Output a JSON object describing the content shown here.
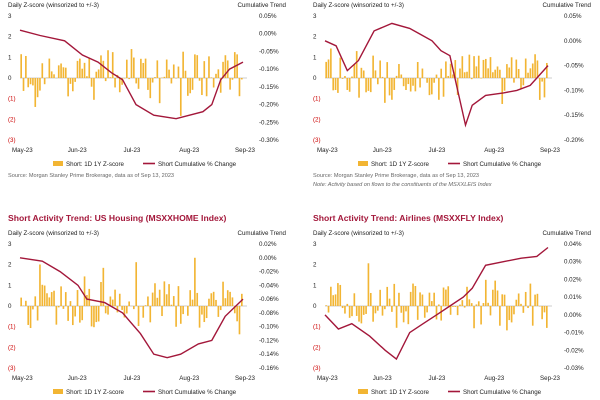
{
  "chart_data": [
    {
      "type": "bar+line",
      "title": "",
      "left_axis_label": "Daily Z-score (winsorized to +/-3)",
      "right_axis_label": "Cumulative Trend",
      "left_ticks": [
        "3",
        "2",
        "1",
        "0",
        "(1)",
        "(2)",
        "(3)"
      ],
      "left_range": [
        -3,
        3
      ],
      "right_ticks": [
        "0.05%",
        "0.00%",
        "-0.05%",
        "-0.10%",
        "-0.15%",
        "-0.20%",
        "-0.25%",
        "-0.30%"
      ],
      "right_range": [
        -0.3,
        0.05
      ],
      "x_tick_labels": [
        "May-23",
        "Jun-23",
        "Jul-23",
        "Aug-23",
        "Sep-23"
      ],
      "legend": [
        "Short: 1D 1Y Z-score",
        "Short Cumulative % Change"
      ],
      "colors": {
        "bar": "#f2b533",
        "line": "#a3173a"
      },
      "source": "Source: Morgan Stanley Prime Brokerage, data as of Sep 13, 2023",
      "note": "",
      "line_keypoints": [
        [
          0,
          0.01
        ],
        [
          0.09,
          -0.005
        ],
        [
          0.2,
          -0.02
        ],
        [
          0.28,
          -0.06
        ],
        [
          0.35,
          -0.08
        ],
        [
          0.41,
          -0.11
        ],
        [
          0.46,
          -0.13
        ],
        [
          0.52,
          -0.2
        ],
        [
          0.6,
          -0.23
        ],
        [
          0.7,
          -0.24
        ],
        [
          0.82,
          -0.22
        ],
        [
          0.86,
          -0.2
        ],
        [
          0.9,
          -0.13
        ],
        [
          0.94,
          -0.1
        ],
        [
          1.0,
          -0.08
        ]
      ]
    },
    {
      "type": "bar+line",
      "title": "",
      "left_axis_label": "Daily Z-score (winsorized to +/-3)",
      "right_axis_label": "Cumulative Trend",
      "left_ticks": [
        "3",
        "2",
        "1",
        "0",
        "(1)",
        "(2)",
        "(3)"
      ],
      "left_range": [
        -3,
        3
      ],
      "right_ticks": [
        "0.05%",
        "0.00%",
        "-0.05%",
        "-0.10%",
        "-0.15%",
        "-0.20%"
      ],
      "right_range": [
        -0.2,
        0.05
      ],
      "x_tick_labels": [
        "May-23",
        "Jun-23",
        "Jul-23",
        "Aug-23",
        "Sep-23"
      ],
      "legend": [
        "Short: 1D 1Y Z-score",
        "Short Cumulative % Change"
      ],
      "colors": {
        "bar": "#f2b533",
        "line": "#a3173a"
      },
      "source": "Source: Morgan Stanley Prime Brokerage, data as of Sep 13, 2023",
      "note": "Note: Activity based on flows to the constituents of the MSXXLEIS Index",
      "line_keypoints": [
        [
          0,
          0.0
        ],
        [
          0.05,
          -0.01
        ],
        [
          0.1,
          -0.06
        ],
        [
          0.15,
          -0.04
        ],
        [
          0.22,
          0.02
        ],
        [
          0.3,
          0.035
        ],
        [
          0.38,
          0.025
        ],
        [
          0.42,
          0.015
        ],
        [
          0.48,
          0.0
        ],
        [
          0.52,
          -0.02
        ],
        [
          0.56,
          -0.03
        ],
        [
          0.6,
          -0.11
        ],
        [
          0.63,
          -0.17
        ],
        [
          0.66,
          -0.13
        ],
        [
          0.72,
          -0.11
        ],
        [
          0.8,
          -0.105
        ],
        [
          0.86,
          -0.1
        ],
        [
          0.92,
          -0.09
        ],
        [
          1.0,
          -0.05
        ]
      ]
    },
    {
      "type": "bar+line",
      "title": "Short Activity Trend: US Housing (MSXXHOME Index)",
      "left_axis_label": "Daily Z-score (winsorized to +/-3)",
      "right_axis_label": "Cumulative Trend",
      "left_ticks": [
        "3",
        "2",
        "1",
        "0",
        "(1)",
        "(2)",
        "(3)"
      ],
      "left_range": [
        -3,
        3
      ],
      "right_ticks": [
        "0.02%",
        "0.00%",
        "-0.02%",
        "-0.04%",
        "-0.06%",
        "-0.08%",
        "-0.10%",
        "-0.12%",
        "-0.14%",
        "-0.16%"
      ],
      "right_range": [
        -0.16,
        0.02
      ],
      "x_tick_labels": [
        "May-23",
        "Jun-23",
        "Jul-23",
        "Aug-23",
        "Sep-23"
      ],
      "legend": [
        "Short: 1D 1Y Z-score",
        "Short Cumulative % Change"
      ],
      "colors": {
        "bar": "#f2b533",
        "line": "#a3173a"
      },
      "source": "",
      "note": "",
      "line_keypoints": [
        [
          0,
          0.0
        ],
        [
          0.1,
          -0.005
        ],
        [
          0.18,
          -0.02
        ],
        [
          0.26,
          -0.04
        ],
        [
          0.3,
          -0.06
        ],
        [
          0.38,
          -0.065
        ],
        [
          0.46,
          -0.08
        ],
        [
          0.54,
          -0.11
        ],
        [
          0.6,
          -0.14
        ],
        [
          0.66,
          -0.145
        ],
        [
          0.72,
          -0.14
        ],
        [
          0.8,
          -0.125
        ],
        [
          0.86,
          -0.12
        ],
        [
          0.92,
          -0.085
        ],
        [
          1.0,
          -0.06
        ]
      ]
    },
    {
      "type": "bar+line",
      "title": "Short Activity Trend: Airlines (MSXXFLY Index)",
      "left_axis_label": "Daily Z-score (winsorized to +/-3)",
      "right_axis_label": "Cumulative Trend",
      "left_ticks": [
        "3",
        "2",
        "1",
        "0",
        "(1)",
        "(2)",
        "(3)"
      ],
      "left_range": [
        -3,
        3
      ],
      "right_ticks": [
        "0.04%",
        "0.03%",
        "0.02%",
        "0.01%",
        "0.00%",
        "-0.01%",
        "-0.02%",
        "-0.03%"
      ],
      "right_range": [
        -0.03,
        0.04
      ],
      "x_tick_labels": [
        "May-23",
        "Jun-23",
        "Jul-23",
        "Aug-23",
        "Sep-23"
      ],
      "legend": [
        "Short: 1D 1Y Z-score",
        "Short Cumulative % Change"
      ],
      "colors": {
        "bar": "#f2b533",
        "line": "#a3173a"
      },
      "source": "",
      "note": "",
      "line_keypoints": [
        [
          0,
          0.0
        ],
        [
          0.06,
          -0.008
        ],
        [
          0.12,
          -0.005
        ],
        [
          0.2,
          -0.012
        ],
        [
          0.27,
          -0.02
        ],
        [
          0.32,
          -0.025
        ],
        [
          0.38,
          -0.01
        ],
        [
          0.44,
          -0.005
        ],
        [
          0.5,
          0.0
        ],
        [
          0.56,
          0.005
        ],
        [
          0.62,
          0.01
        ],
        [
          0.66,
          0.015
        ],
        [
          0.72,
          0.028
        ],
        [
          0.8,
          0.03
        ],
        [
          0.88,
          0.032
        ],
        [
          0.95,
          0.033
        ],
        [
          1.0,
          0.038
        ]
      ]
    }
  ]
}
